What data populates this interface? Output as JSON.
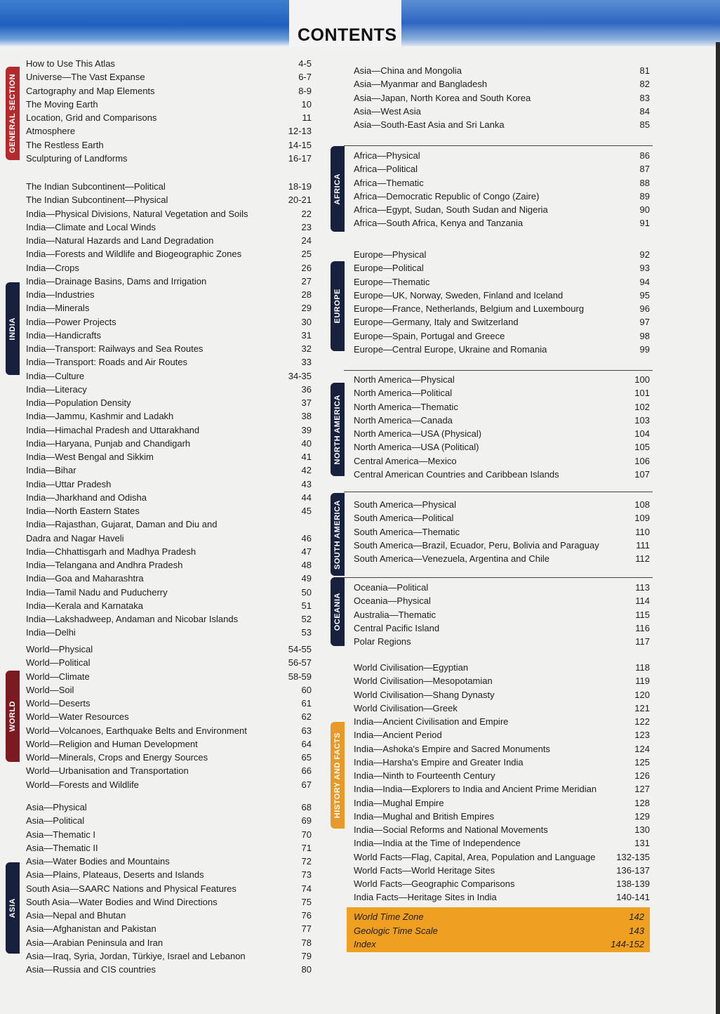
{
  "header": {
    "title": "CONTENTS"
  },
  "colors": {
    "general": "#b42a2c",
    "navy": "#17213d",
    "world": "#7c1a22",
    "history": "#e79a2a",
    "highlight": "#f0a020",
    "banner": "#2a63c0"
  },
  "left_sections": [
    {
      "key": "general",
      "tab": "GENERAL SECTION",
      "entries": [
        {
          "title": "How to Use This Atlas",
          "page": "4-5"
        },
        {
          "title": "Universe—The Vast Expanse",
          "page": "6-7"
        },
        {
          "title": "Cartography and Map Elements",
          "page": "8-9"
        },
        {
          "title": "The Moving Earth",
          "page": "10"
        },
        {
          "title": "Location, Grid and Comparisons",
          "page": "11"
        },
        {
          "title": "Atmosphere",
          "page": "12-13"
        },
        {
          "title": "The Restless Earth",
          "page": "14-15"
        },
        {
          "title": "Sculpturing of Landforms",
          "page": "16-17"
        }
      ]
    },
    {
      "key": "india",
      "tab": "INDIA",
      "entries": [
        {
          "title": "The Indian Subcontinent—Political",
          "page": "18-19"
        },
        {
          "title": "The Indian Subcontinent—Physical",
          "page": "20-21"
        },
        {
          "title": "India—Physical Divisions, Natural Vegetation and Soils",
          "page": "22"
        },
        {
          "title": "India—Climate and Local Winds",
          "page": "23"
        },
        {
          "title": "India—Natural Hazards and Land Degradation",
          "page": "24"
        },
        {
          "title": "India—Forests and Wildlife and Biogeographic Zones",
          "page": "25"
        },
        {
          "title": "India—Crops",
          "page": "26"
        },
        {
          "title": "India—Drainage Basins, Dams and Irrigation",
          "page": "27"
        },
        {
          "title": "India—Industries",
          "page": "28"
        },
        {
          "title": "India—Minerals",
          "page": "29"
        },
        {
          "title": "India—Power Projects",
          "page": "30"
        },
        {
          "title": "India—Handicrafts",
          "page": "31"
        },
        {
          "title": "India—Transport: Railways and Sea Routes",
          "page": "32"
        },
        {
          "title": "India—Transport: Roads and Air Routes",
          "page": "33"
        },
        {
          "title": "India—Culture",
          "page": "34-35"
        },
        {
          "title": "India—Literacy",
          "page": "36"
        },
        {
          "title": "India—Population Density",
          "page": "37"
        },
        {
          "title": "India—Jammu, Kashmir and Ladakh",
          "page": "38"
        },
        {
          "title": "India—Himachal Pradesh and Uttarakhand",
          "page": "39"
        },
        {
          "title": "India—Haryana, Punjab and Chandigarh",
          "page": "40"
        },
        {
          "title": "India—West Bengal and Sikkim",
          "page": "41"
        },
        {
          "title": "India—Bihar",
          "page": "42"
        },
        {
          "title": "India—Uttar Pradesh",
          "page": "43"
        },
        {
          "title": "India—Jharkhand and Odisha",
          "page": "44"
        },
        {
          "title": "India—North Eastern States",
          "page": "45"
        },
        {
          "title": "India—Rajasthan, Gujarat, Daman and Diu and\nDadra and Nagar Haveli",
          "page": "46"
        },
        {
          "title": "India—Chhattisgarh and Madhya Pradesh",
          "page": "47"
        },
        {
          "title": "India—Telangana and Andhra Pradesh",
          "page": "48"
        },
        {
          "title": "India—Goa and Maharashtra",
          "page": "49"
        },
        {
          "title": "India—Tamil Nadu and Puducherry",
          "page": "50"
        },
        {
          "title": "India—Kerala and Karnataka",
          "page": "51"
        },
        {
          "title": "India—Lakshadweep, Andaman and Nicobar Islands",
          "page": "52"
        },
        {
          "title": "India—Delhi",
          "page": "53"
        }
      ]
    },
    {
      "key": "world",
      "tab": "WORLD",
      "entries": [
        {
          "title": "World—Physical",
          "page": "54-55"
        },
        {
          "title": "World—Political",
          "page": "56-57"
        },
        {
          "title": "World—Climate",
          "page": "58-59"
        },
        {
          "title": "World—Soil",
          "page": "60"
        },
        {
          "title": "World—Deserts",
          "page": "61"
        },
        {
          "title": "World—Water Resources",
          "page": "62"
        },
        {
          "title": "World—Volcanoes, Earthquake Belts and Environment",
          "page": "63"
        },
        {
          "title": "World—Religion and Human Development",
          "page": "64"
        },
        {
          "title": "World—Minerals, Crops and Energy Sources",
          "page": "65"
        },
        {
          "title": "World—Urbanisation and Transportation",
          "page": "66"
        },
        {
          "title": "World—Forests and Wildlife",
          "page": "67"
        }
      ]
    },
    {
      "key": "asia",
      "tab": "ASIA",
      "entries": [
        {
          "title": "Asia—Physical",
          "page": "68"
        },
        {
          "title": "Asia—Political",
          "page": "69"
        },
        {
          "title": "Asia—Thematic I",
          "page": "70"
        },
        {
          "title": "Asia—Thematic II",
          "page": "71"
        },
        {
          "title": "Asia—Water Bodies and Mountains",
          "page": "72"
        },
        {
          "title": "Asia—Plains, Plateaus, Deserts and Islands",
          "page": "73"
        },
        {
          "title": "South Asia—SAARC Nations and Physical Features",
          "page": "74"
        },
        {
          "title": "South Asia—Water Bodies and Wind Directions",
          "page": "75"
        },
        {
          "title": "Asia—Nepal and Bhutan",
          "page": "76"
        },
        {
          "title": "Asia—Afghanistan and Pakistan",
          "page": "77"
        },
        {
          "title": "Asia—Arabian Peninsula and Iran",
          "page": "78"
        },
        {
          "title": "Asia—Iraq, Syria, Jordan, Türkiye, Israel and Lebanon",
          "page": "79"
        },
        {
          "title": "Asia—Russia and CIS countries",
          "page": "80"
        }
      ]
    }
  ],
  "right_sections": [
    {
      "key": "asia-cont",
      "tab": "",
      "entries": [
        {
          "title": "Asia—China and Mongolia",
          "page": "81"
        },
        {
          "title": "Asia—Myanmar and Bangladesh",
          "page": "82"
        },
        {
          "title": "Asia—Japan, North Korea and South Korea",
          "page": "83"
        },
        {
          "title": "Asia—West Asia",
          "page": "84"
        },
        {
          "title": "Asia—South-East Asia and Sri Lanka",
          "page": "85"
        }
      ]
    },
    {
      "key": "africa",
      "tab": "AFRICA",
      "entries": [
        {
          "title": "Africa—Physical",
          "page": "86"
        },
        {
          "title": "Africa—Political",
          "page": "87"
        },
        {
          "title": "Africa—Thematic",
          "page": "88"
        },
        {
          "title": "Africa—Democratic Republic of Congo (Zaire)",
          "page": "89"
        },
        {
          "title": "Africa—Egypt, Sudan, South Sudan and Nigeria",
          "page": "90"
        },
        {
          "title": "Africa—South Africa, Kenya and Tanzania",
          "page": "91"
        }
      ]
    },
    {
      "key": "europe",
      "tab": "EUROPE",
      "entries": [
        {
          "title": "Europe—Physical",
          "page": "92"
        },
        {
          "title": "Europe—Political",
          "page": "93"
        },
        {
          "title": "Europe—Thematic",
          "page": "94"
        },
        {
          "title": "Europe—UK, Norway, Sweden, Finland and Iceland",
          "page": "95"
        },
        {
          "title": "Europe—France, Netherlands, Belgium and Luxembourg",
          "page": "96"
        },
        {
          "title": "Europe—Germany, Italy and Switzerland",
          "page": "97"
        },
        {
          "title": "Europe—Spain, Portugal and Greece",
          "page": "98"
        },
        {
          "title": "Europe—Central Europe, Ukraine and Romania",
          "page": "99"
        }
      ]
    },
    {
      "key": "north-america",
      "tab": "NORTH AMERICA",
      "entries": [
        {
          "title": "North America—Physical",
          "page": "100"
        },
        {
          "title": "North America—Political",
          "page": "101"
        },
        {
          "title": "North America—Thematic",
          "page": "102"
        },
        {
          "title": "North America—Canada",
          "page": "103"
        },
        {
          "title": "North America—USA (Physical)",
          "page": "104"
        },
        {
          "title": "North America—USA (Political)",
          "page": "105"
        },
        {
          "title": "Central America—Mexico",
          "page": "106"
        },
        {
          "title": "Central American Countries and Caribbean Islands",
          "page": "107"
        }
      ]
    },
    {
      "key": "south-america",
      "tab": "SOUTH AMERICA",
      "entries": [
        {
          "title": "South America—Physical",
          "page": "108"
        },
        {
          "title": "South America—Political",
          "page": "109"
        },
        {
          "title": "South America—Thematic",
          "page": "110"
        },
        {
          "title": "South America—Brazil, Ecuador, Peru, Bolivia and Paraguay",
          "page": "111"
        },
        {
          "title": "South America—Venezuela, Argentina and Chile",
          "page": "112"
        }
      ]
    },
    {
      "key": "oceania",
      "tab": "OCEANIA",
      "entries": [
        {
          "title": "Oceania—Political",
          "page": "113"
        },
        {
          "title": "Oceania—Physical",
          "page": "114"
        },
        {
          "title": "Australia—Thematic",
          "page": "115"
        },
        {
          "title": "Central Pacific Island",
          "page": "116"
        },
        {
          "title": "Polar Regions",
          "page": "117"
        }
      ]
    },
    {
      "key": "history",
      "tab": "HISTORY AND FACTS",
      "entries": [
        {
          "title": "World Civilisation—Egyptian",
          "page": "118"
        },
        {
          "title": "World Civilisation—Mesopotamian",
          "page": "119"
        },
        {
          "title": "World Civilisation—Shang Dynasty",
          "page": "120"
        },
        {
          "title": "World Civilisation—Greek",
          "page": "121"
        },
        {
          "title": "India—Ancient Civilisation and Empire",
          "page": "122"
        },
        {
          "title": "India—Ancient Period",
          "page": "123"
        },
        {
          "title": "India—Ashoka's Empire and Sacred Monuments",
          "page": "124"
        },
        {
          "title": "India—Harsha's Empire and Greater India",
          "page": "125"
        },
        {
          "title": "India—Ninth to Fourteenth Century",
          "page": "126"
        },
        {
          "title": "India—India—Explorers to India and Ancient Prime Meridian",
          "page": "127"
        },
        {
          "title": "India—Mughal Empire",
          "page": "128"
        },
        {
          "title": "India—Mughal and British Empires",
          "page": "129"
        },
        {
          "title": "India—Social Reforms and National Movements",
          "page": "130"
        },
        {
          "title": "India—India at the Time of Independence",
          "page": "131"
        },
        {
          "title": "World Facts—Flag, Capital, Area, Population and Language",
          "page": "132-135"
        },
        {
          "title": "World Facts—World Heritage Sites",
          "page": "136-137"
        },
        {
          "title": "World Facts—Geographic Comparisons",
          "page": "138-139"
        },
        {
          "title": "India Facts—Heritage Sites in India",
          "page": "140-141"
        }
      ]
    }
  ],
  "highlight_box": [
    {
      "title": "World Time Zone",
      "page": "142"
    },
    {
      "title": "Geologic Time Scale",
      "page": "143"
    },
    {
      "title": "Index",
      "page": "144-152"
    }
  ]
}
